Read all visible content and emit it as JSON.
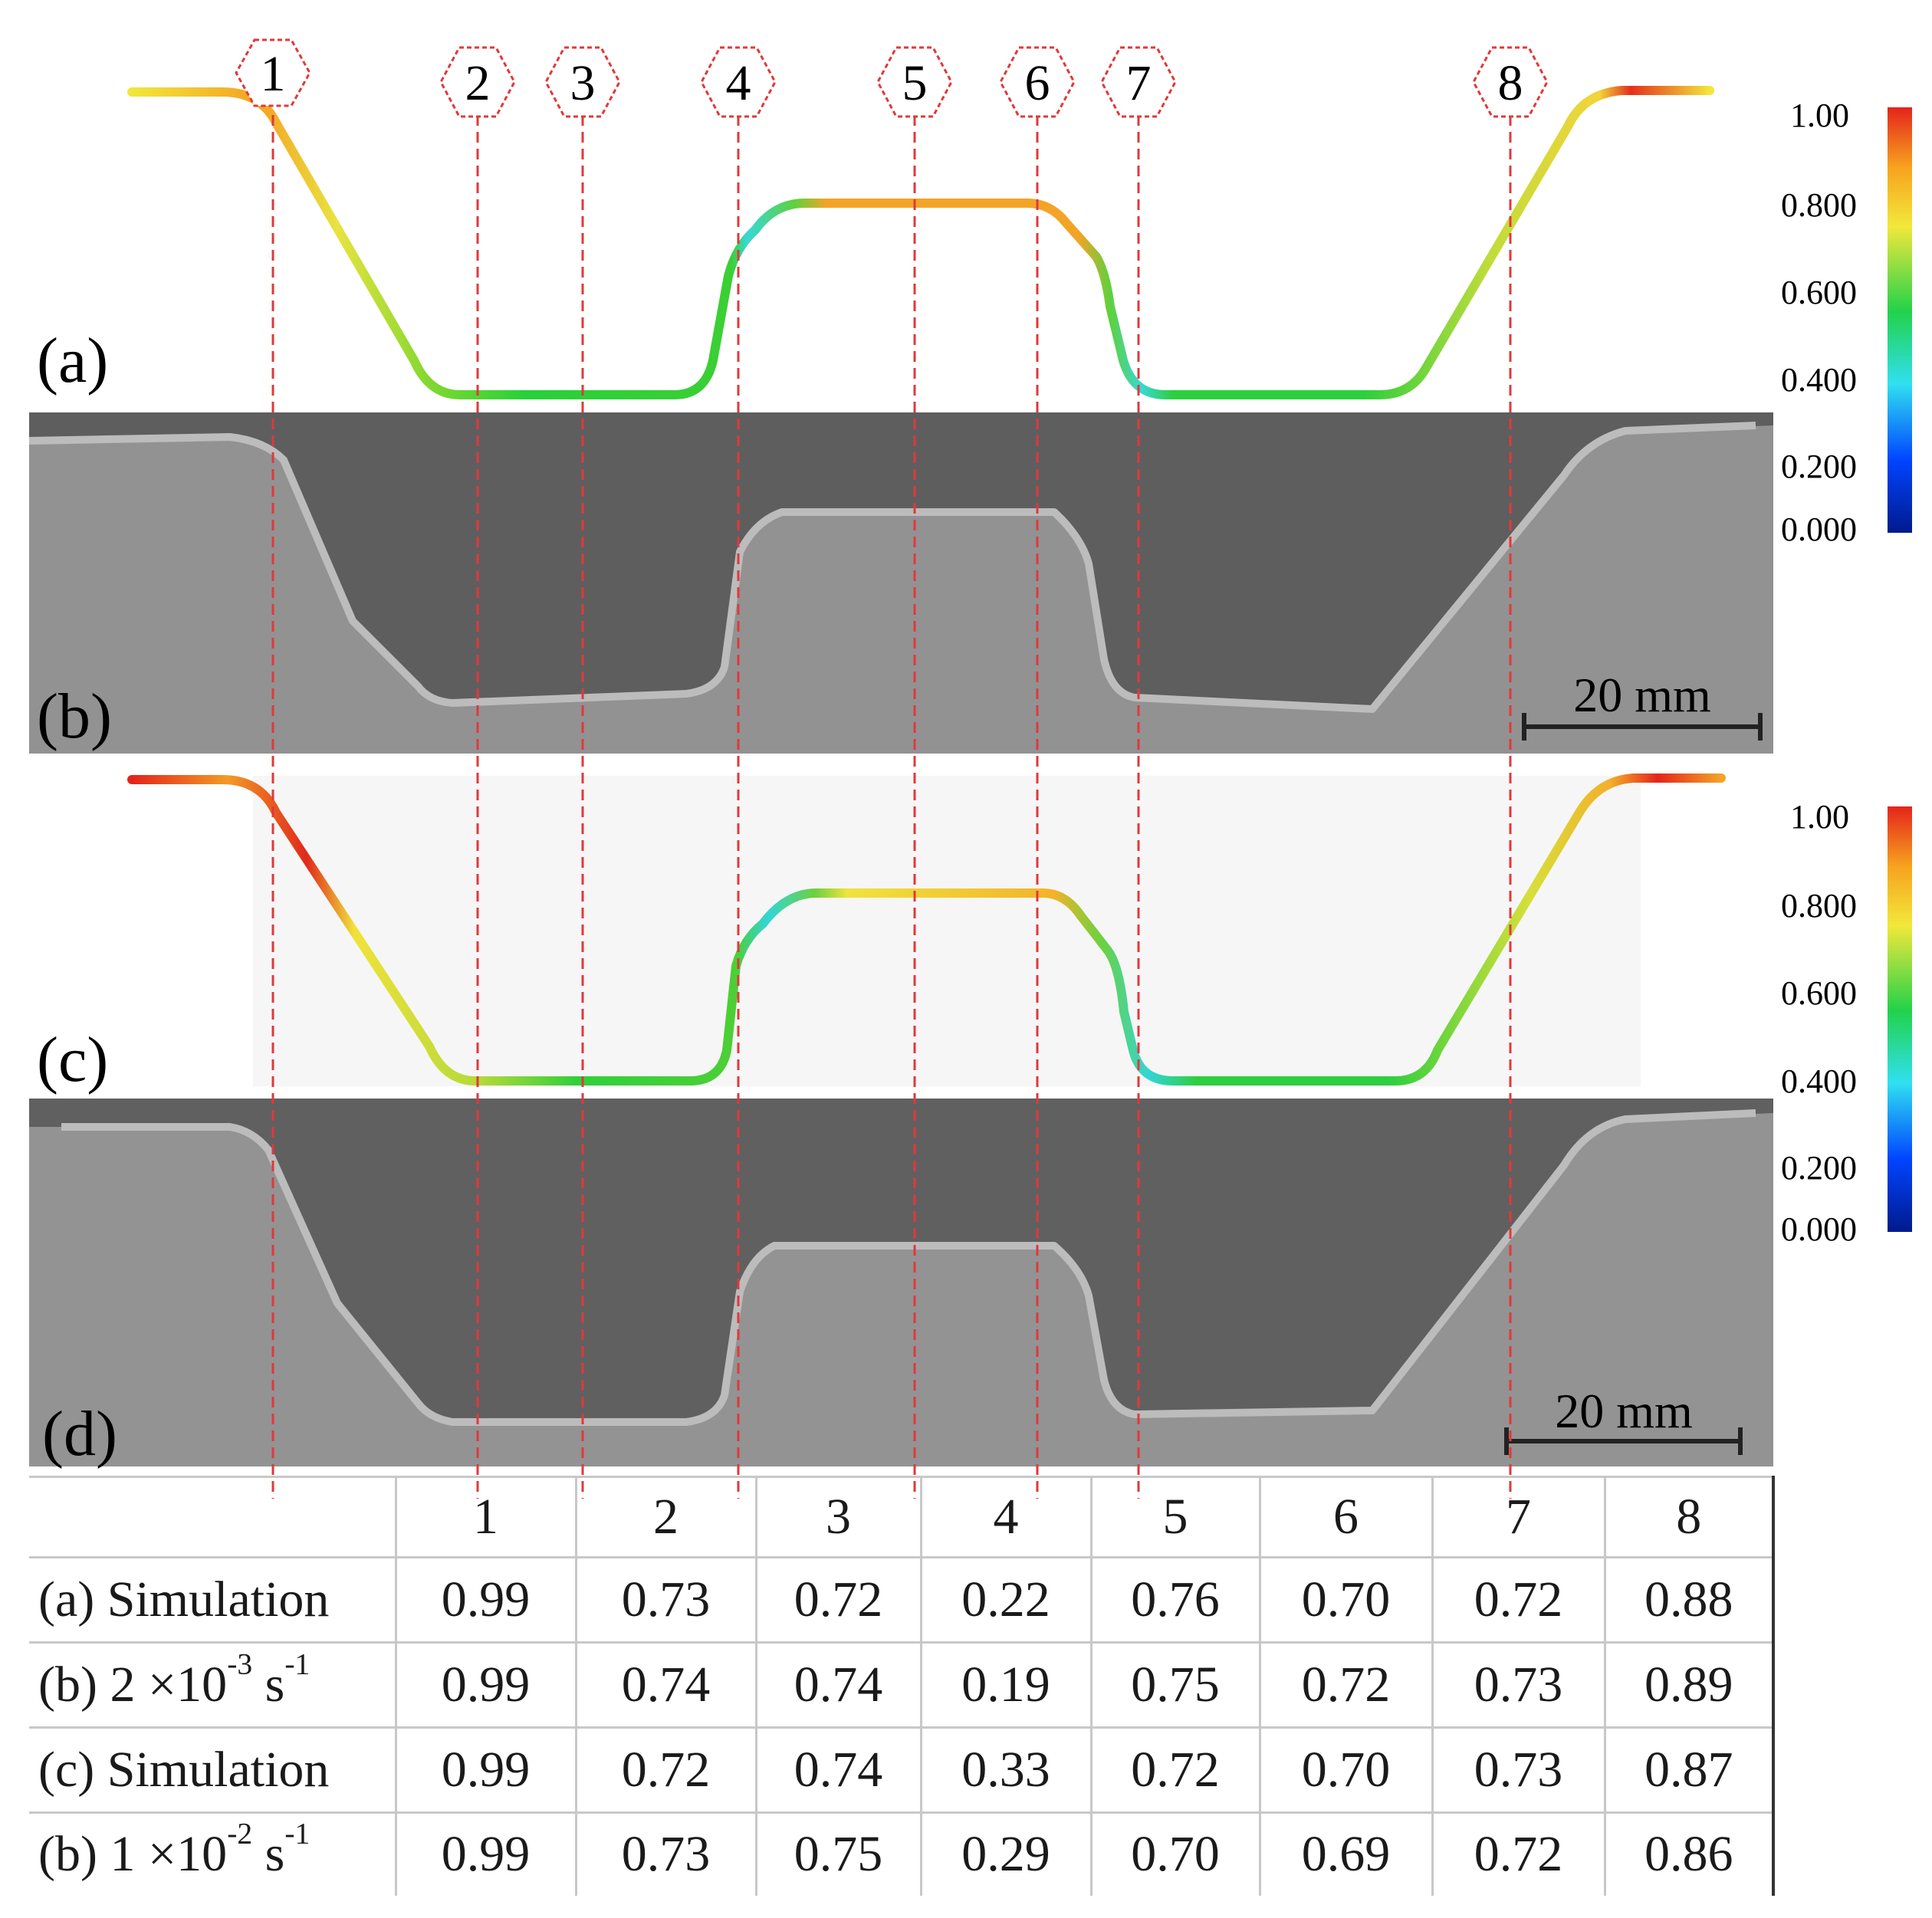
{
  "panels": {
    "a": "(a)",
    "b": "(b)",
    "c": "(c)",
    "d": "(d)"
  },
  "markers": [
    "1",
    "2",
    "3",
    "4",
    "5",
    "6",
    "7",
    "8"
  ],
  "colorbars": [
    {
      "ticks": [
        "1.00",
        "0.800",
        "0.600",
        "0.400",
        "0.200",
        "0.000"
      ]
    },
    {
      "ticks": [
        "1.00",
        "0.800",
        "0.600",
        "0.400",
        "0.200",
        "0.000"
      ]
    }
  ],
  "scale_bars": {
    "b": "20 mm",
    "d": "20 mm"
  },
  "colors": {
    "marker_red": "#e0393a",
    "cmap": [
      "#001a8c",
      "#0044ff",
      "#30e0f0",
      "#22d24a",
      "#f2e83a",
      "#f7a21e",
      "#e4241b"
    ]
  },
  "table": {
    "columns": [
      "1",
      "2",
      "3",
      "4",
      "5",
      "6",
      "7",
      "8"
    ],
    "rows": [
      {
        "label": "(a) Simulation",
        "values": [
          "0.99",
          "0.73",
          "0.72",
          "0.22",
          "0.76",
          "0.70",
          "0.72",
          "0.88"
        ]
      },
      {
        "label_main": "(b) 2 ×10",
        "label_exp": "-3",
        "label_unit": " s",
        "label_unit_exp": "-1",
        "values": [
          "0.99",
          "0.74",
          "0.74",
          "0.19",
          "0.75",
          "0.72",
          "0.73",
          "0.89"
        ]
      },
      {
        "label": "(c) Simulation",
        "values": [
          "0.99",
          "0.72",
          "0.74",
          "0.33",
          "0.72",
          "0.70",
          "0.73",
          "0.87"
        ]
      },
      {
        "label_main": "(b) 1 ×10",
        "label_exp": "-2",
        "label_unit": " s",
        "label_unit_exp": "-1",
        "values": [
          "0.99",
          "0.73",
          "0.75",
          "0.29",
          "0.70",
          "0.69",
          "0.72",
          "0.86"
        ]
      }
    ]
  }
}
